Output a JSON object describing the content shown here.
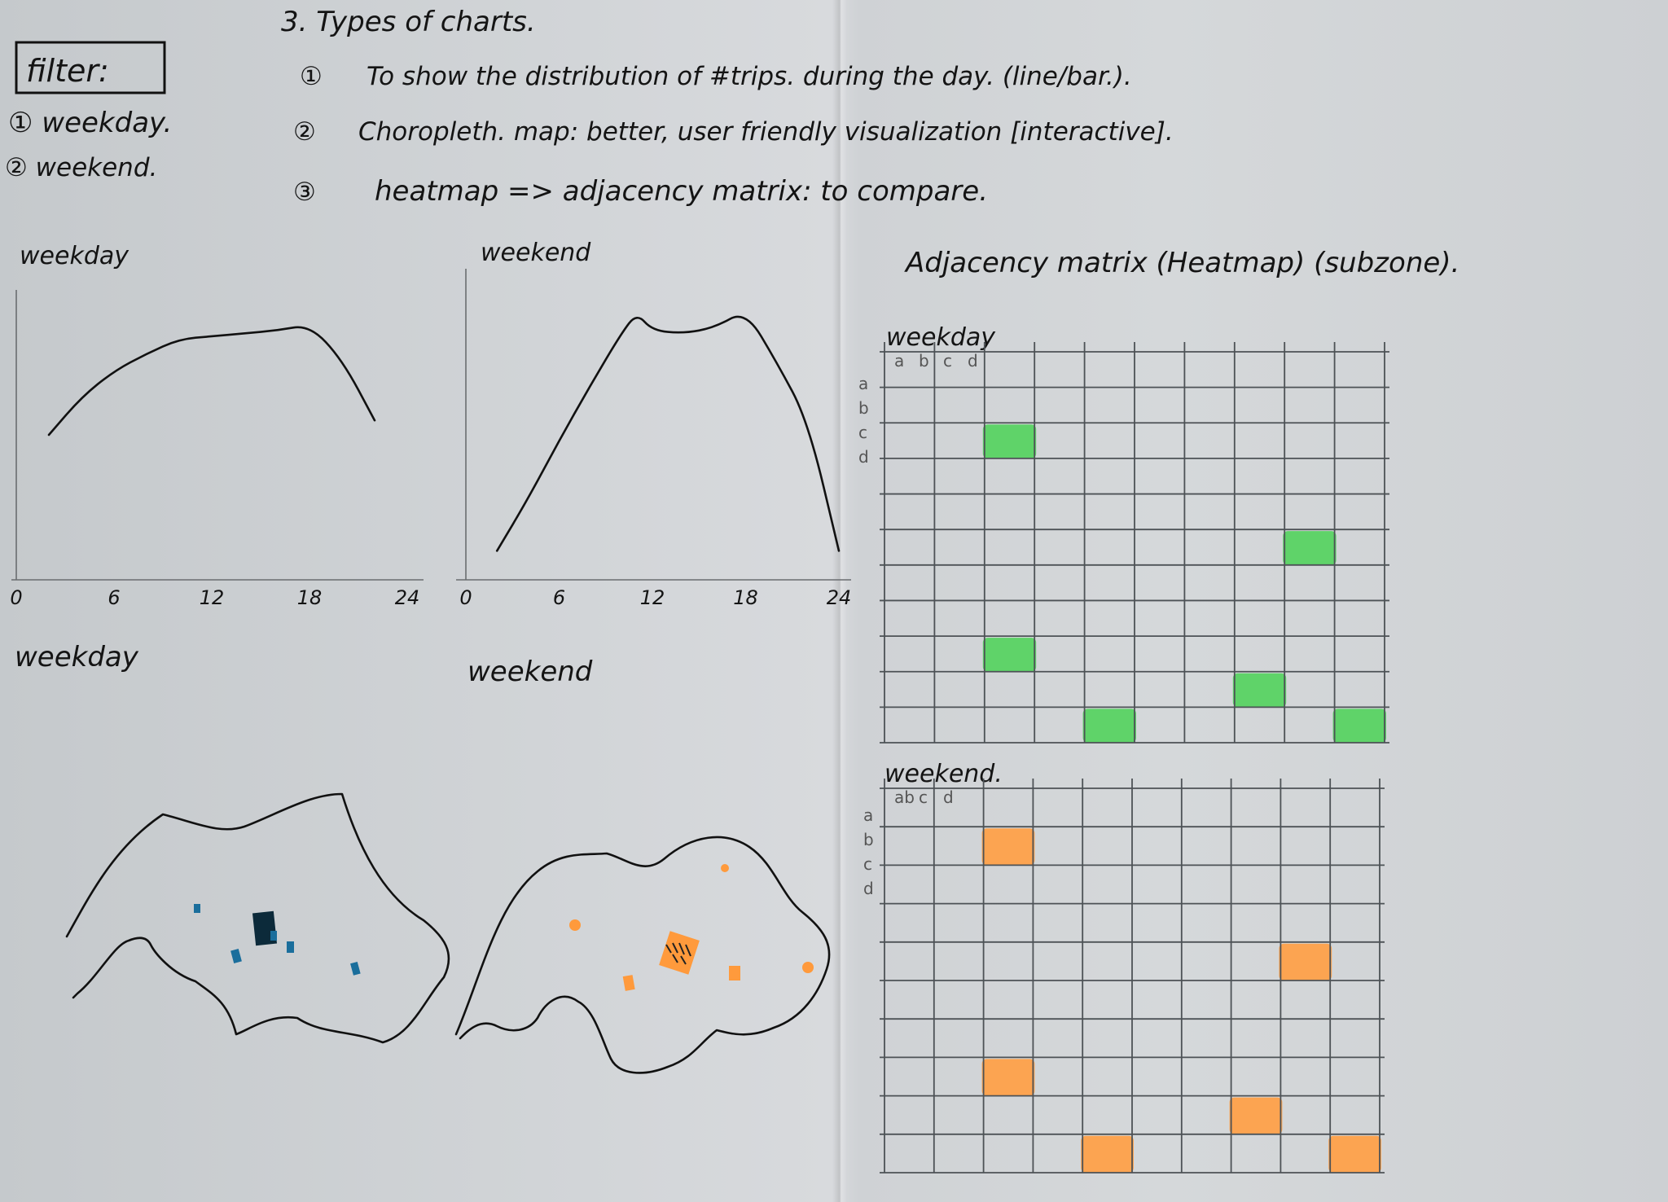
{
  "header": {
    "section_title": "3. Types of charts.",
    "items": [
      {
        "marker": "①",
        "text": "To show the distribution of #trips. during the day. (line/bar.)."
      },
      {
        "marker": "②",
        "text": "Choropleth. map: better, user friendly visualization [interactive]."
      },
      {
        "marker": "③",
        "text": "heatmap => adjacency matrix: to compare."
      }
    ]
  },
  "filter": {
    "title": "filter:",
    "options": [
      "① weekday.",
      "② weekend."
    ]
  },
  "line_charts": {
    "left_title": "weekday",
    "right_title": "weekend",
    "x_ticks": [
      "0",
      "6",
      "12",
      "18",
      "24"
    ]
  },
  "maps": {
    "left_title": "weekday",
    "right_title": "weekend",
    "colors": {
      "weekday_mark": "#1a6e9c",
      "weekday_dark": "#0c2a3a",
      "weekend_mark": "#ff9a3c"
    }
  },
  "matrix": {
    "title": "Adjacency matrix (Heatmap) (subzone).",
    "weekday_label": "weekday",
    "weekend_label": "weekend.",
    "axis_letters": [
      "a",
      "b",
      "c",
      "d"
    ],
    "top_letters_weekend": [
      "ab",
      "c",
      "d"
    ],
    "colors": {
      "weekday_fill": "#55d35f",
      "weekend_fill": "#ff9f45"
    }
  },
  "chart_data": [
    {
      "type": "line",
      "title": "weekday",
      "x": [
        2,
        4,
        6,
        8,
        10,
        12,
        14,
        16,
        18,
        20,
        22
      ],
      "y": [
        0.5,
        0.63,
        0.72,
        0.78,
        0.83,
        0.84,
        0.85,
        0.86,
        0.88,
        0.76,
        0.55
      ],
      "xlim": [
        0,
        24
      ],
      "x_ticks": [
        0,
        6,
        12,
        18,
        24
      ]
    },
    {
      "type": "line",
      "title": "weekend",
      "x": [
        2,
        4,
        6,
        8,
        10,
        11,
        12,
        14,
        16,
        18,
        20,
        22,
        24
      ],
      "y": [
        0.1,
        0.28,
        0.48,
        0.67,
        0.85,
        0.92,
        0.86,
        0.85,
        0.87,
        0.93,
        0.75,
        0.55,
        0.1
      ],
      "xlim": [
        0,
        24
      ],
      "x_ticks": [
        0,
        6,
        12,
        18,
        24
      ]
    },
    {
      "type": "heatmap",
      "title": "weekday",
      "rows": 11,
      "cols": 10,
      "filled_cells": [
        [
          2,
          2
        ],
        [
          5,
          8
        ],
        [
          8,
          2
        ],
        [
          9,
          7
        ],
        [
          10,
          4
        ],
        [
          10,
          9
        ]
      ]
    },
    {
      "type": "heatmap",
      "title": "weekend.",
      "rows": 10,
      "cols": 10,
      "filled_cells": [
        [
          1,
          2
        ],
        [
          4,
          8
        ],
        [
          7,
          2
        ],
        [
          8,
          7
        ],
        [
          9,
          4
        ],
        [
          9,
          9
        ]
      ]
    }
  ]
}
